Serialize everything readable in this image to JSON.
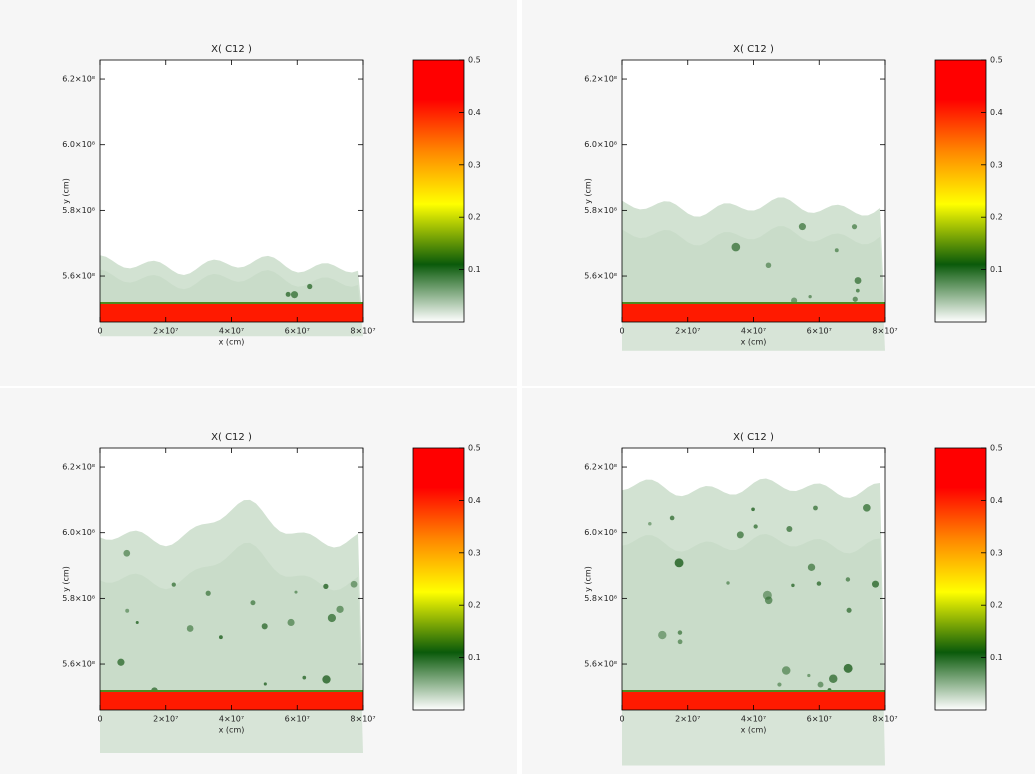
{
  "chart_data": [
    {
      "type": "heatmap",
      "title": "X( C12 )",
      "x_label": "x (cm)",
      "y_label": "y (cm)",
      "xlim": [
        0,
        80000000
      ],
      "xticks": [
        0,
        {
          "value": 20000000,
          "label": "2×10⁷"
        },
        {
          "value": 40000000,
          "label": "4×10⁷"
        },
        {
          "value": 60000000,
          "label": "6×10⁷"
        },
        {
          "value": 80000000,
          "label": "8×10⁷"
        }
      ],
      "ylim": [
        546000000,
        625800000
      ],
      "yticks": [
        {
          "value": 560000000,
          "label": "5.6×10⁸"
        },
        {
          "value": 580000000,
          "label": "5.8×10⁸"
        },
        {
          "value": 600000000,
          "label": "6.0×10⁸"
        },
        {
          "value": 620000000,
          "label": "6.2×10⁸"
        }
      ],
      "clim": [
        0,
        0.5
      ],
      "cticks": [
        0.1,
        0.2,
        0.3,
        0.4,
        0.5
      ],
      "colors": [
        "#ffffff",
        "#0a5a0a",
        "#ffff00",
        "#ff8800",
        "#ff0000"
      ]
    },
    {
      "type": "heatmap",
      "title": "X( C12 )",
      "x_label": "x (cm)",
      "y_label": "y (cm)",
      "xlim": [
        0,
        80000000
      ],
      "xticks": [
        0,
        {
          "value": 20000000,
          "label": "2×10⁷"
        },
        {
          "value": 40000000,
          "label": "4×10⁷"
        },
        {
          "value": 60000000,
          "label": "6×10⁷"
        },
        {
          "value": 80000000,
          "label": "8×10⁷"
        }
      ],
      "ylim": [
        546000000,
        625800000
      ],
      "yticks": [
        {
          "value": 560000000,
          "label": "5.6×10⁸"
        },
        {
          "value": 580000000,
          "label": "5.8×10⁸"
        },
        {
          "value": 600000000,
          "label": "6.0×10⁸"
        },
        {
          "value": 620000000,
          "label": "6.2×10⁸"
        }
      ],
      "clim": [
        0,
        0.5
      ],
      "cticks": [
        0.1,
        0.2,
        0.3,
        0.4,
        0.5
      ],
      "colors": [
        "#ffffff",
        "#0a5a0a",
        "#ffff00",
        "#ff8800",
        "#ff0000"
      ]
    },
    {
      "type": "heatmap",
      "title": "X( C12 )",
      "x_label": "x (cm)",
      "y_label": "y (cm)",
      "xlim": [
        0,
        80000000
      ],
      "xticks": [
        0,
        {
          "value": 20000000,
          "label": "2×10⁷"
        },
        {
          "value": 40000000,
          "label": "4×10⁷"
        },
        {
          "value": 60000000,
          "label": "6×10⁷"
        },
        {
          "value": 80000000,
          "label": "8×10⁷"
        }
      ],
      "ylim": [
        546000000,
        625800000
      ],
      "yticks": [
        {
          "value": 560000000,
          "label": "5.6×10⁸"
        },
        {
          "value": 580000000,
          "label": "5.8×10⁸"
        },
        {
          "value": 600000000,
          "label": "6.0×10⁸"
        },
        {
          "value": 620000000,
          "label": "6.2×10⁸"
        }
      ],
      "clim": [
        0,
        0.5
      ],
      "cticks": [
        0.1,
        0.2,
        0.3,
        0.4,
        0.5
      ],
      "colors": [
        "#ffffff",
        "#0a5a0a",
        "#ffff00",
        "#ff8800",
        "#ff0000"
      ]
    },
    {
      "type": "heatmap",
      "title": "X( C12 )",
      "x_label": "x (cm)",
      "y_label": "y (cm)",
      "xlim": [
        0,
        80000000
      ],
      "xticks": [
        0,
        {
          "value": 20000000,
          "label": "2×10⁷"
        },
        {
          "value": 40000000,
          "label": "4×10⁷"
        },
        {
          "value": 60000000,
          "label": "6×10⁷"
        },
        {
          "value": 80000000,
          "label": "8×10⁷"
        }
      ],
      "ylim": [
        546000000,
        625800000
      ],
      "yticks": [
        {
          "value": 560000000,
          "label": "5.6×10⁸"
        },
        {
          "value": 580000000,
          "label": "5.8×10⁸"
        },
        {
          "value": 600000000,
          "label": "6.0×10⁸"
        },
        {
          "value": 620000000,
          "label": "6.2×10⁸"
        }
      ],
      "clim": [
        0,
        0.5
      ],
      "cticks": [
        0.1,
        0.2,
        0.3,
        0.4,
        0.5
      ],
      "colors": [
        "#ffffff",
        "#0a5a0a",
        "#ffff00",
        "#ff8800",
        "#ff0000"
      ]
    }
  ]
}
